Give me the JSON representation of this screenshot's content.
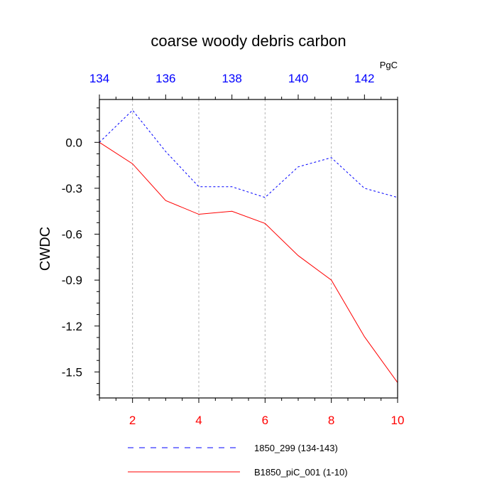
{
  "chart_data": {
    "type": "line",
    "title": "coarse woody debris carbon",
    "ylabel": "CWDC",
    "xlabel": "",
    "top_axis": {
      "unit_label": "PgC",
      "range": [
        134,
        143
      ],
      "ticks": [
        134,
        136,
        138,
        140,
        142
      ],
      "tick_labels": [
        "134",
        "136",
        "138",
        "140",
        "142"
      ],
      "color": "#0000ff"
    },
    "bottom_axis": {
      "range": [
        1,
        10
      ],
      "ticks": [
        2,
        4,
        6,
        8,
        10
      ],
      "tick_labels": [
        "2",
        "4",
        "6",
        "8",
        "10"
      ],
      "color": "#ff0000"
    },
    "y_axis": {
      "range": [
        -1.67,
        0.28
      ],
      "ticks": [
        0.0,
        -0.3,
        -0.6,
        -0.9,
        -1.2,
        -1.5
      ],
      "tick_labels": [
        "0.0",
        "-0.3",
        "-0.6",
        "-0.9",
        "-1.2",
        "-1.5"
      ]
    },
    "grid": {
      "vertical_dashed_at_bottom_ticks": true
    },
    "legend_position": "bottom",
    "series": [
      {
        "name": "1850_299 (134-143)",
        "axis": "top",
        "color": "#0000ff",
        "dash": "dashed",
        "x": [
          134,
          135,
          136,
          137,
          138,
          139,
          140,
          141,
          142,
          143
        ],
        "values": [
          0.0,
          0.21,
          -0.06,
          -0.29,
          -0.29,
          -0.36,
          -0.16,
          -0.1,
          -0.3,
          -0.36
        ]
      },
      {
        "name": "B1850_piC_001 (1-10)",
        "axis": "bottom",
        "color": "#ff0000",
        "dash": "solid",
        "x": [
          1,
          2,
          3,
          4,
          5,
          6,
          7,
          8,
          9,
          10
        ],
        "values": [
          0.0,
          -0.14,
          -0.38,
          -0.47,
          -0.45,
          -0.53,
          -0.74,
          -0.9,
          -1.27,
          -1.57
        ]
      }
    ]
  }
}
